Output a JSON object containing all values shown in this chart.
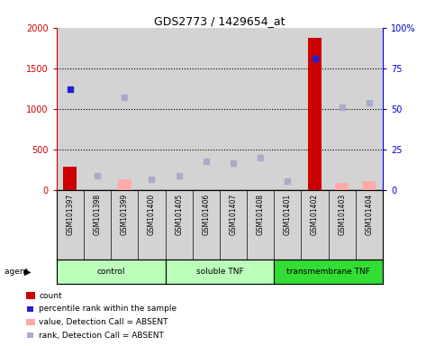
{
  "title": "GDS2773 / 1429654_at",
  "samples": [
    "GSM101397",
    "GSM101398",
    "GSM101399",
    "GSM101400",
    "GSM101405",
    "GSM101406",
    "GSM101407",
    "GSM101408",
    "GSM101401",
    "GSM101402",
    "GSM101403",
    "GSM101404"
  ],
  "count": [
    290,
    0,
    0,
    0,
    0,
    0,
    0,
    0,
    0,
    1870,
    0,
    0
  ],
  "count_absent": [
    0,
    0,
    130,
    0,
    0,
    0,
    0,
    0,
    0,
    0,
    95,
    110
  ],
  "rank": [
    1240,
    0,
    0,
    0,
    0,
    0,
    0,
    0,
    0,
    1620,
    0,
    0
  ],
  "rank_absent": [
    0,
    185,
    1145,
    140,
    185,
    360,
    340,
    400,
    110,
    0,
    1020,
    1080
  ],
  "ylim_left": [
    0,
    2000
  ],
  "ylim_right": [
    0,
    100
  ],
  "yticks_left": [
    0,
    500,
    1000,
    1500,
    2000
  ],
  "yticks_right": [
    0,
    25,
    50,
    75,
    100
  ],
  "yticklabels_right": [
    "0",
    "25",
    "50",
    "75",
    "100%"
  ],
  "bar_color": "#cc0000",
  "bar_absent_color": "#ffaaaa",
  "rank_color": "#2222cc",
  "rank_absent_color": "#aaaacc",
  "bg_color": "#d3d3d3",
  "groups": [
    {
      "name": "control",
      "color": "#bbffbb",
      "start": 0,
      "end": 3
    },
    {
      "name": "soluble TNF",
      "color": "#bbffbb",
      "start": 4,
      "end": 7
    },
    {
      "name": "transmembrane TNF",
      "color": "#33dd33",
      "start": 8,
      "end": 11
    }
  ],
  "legend_items": [
    {
      "label": "count",
      "color": "#cc0000",
      "type": "rect"
    },
    {
      "label": "percentile rank within the sample",
      "color": "#2222cc",
      "type": "square"
    },
    {
      "label": "value, Detection Call = ABSENT",
      "color": "#ffaaaa",
      "type": "rect"
    },
    {
      "label": "rank, Detection Call = ABSENT",
      "color": "#aaaacc",
      "type": "square"
    }
  ]
}
